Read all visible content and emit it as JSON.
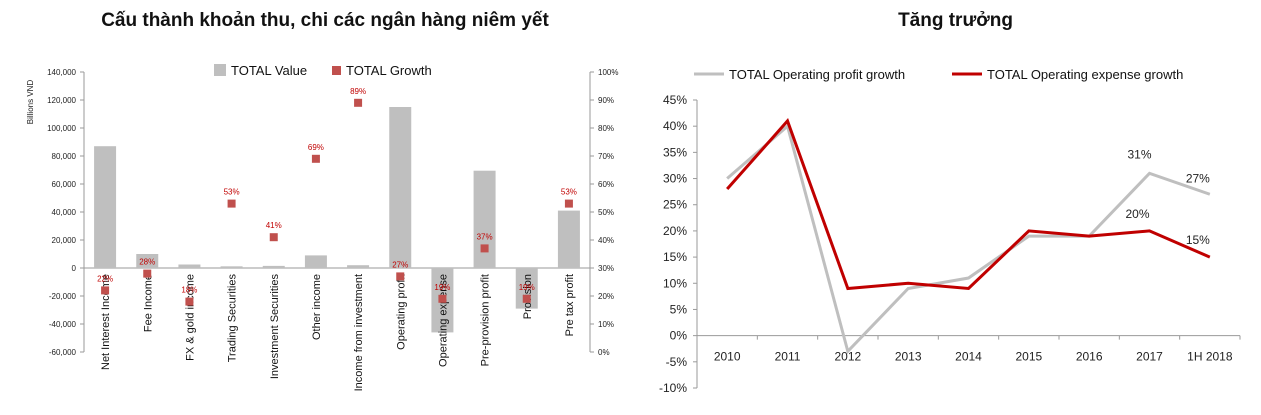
{
  "chart_data": [
    {
      "type": "bar",
      "title": "Cấu thành khoản thu, chi các ngân hàng niêm yết",
      "ylabel": "Billions VND",
      "ylim": [
        -60000,
        140000
      ],
      "y_ticks": [
        "-60,000",
        "-40,000",
        "-20,000",
        "0",
        "20,000",
        "40,000",
        "60,000",
        "80,000",
        "100,000",
        "120,000",
        "140,000"
      ],
      "y2lim": [
        0,
        100
      ],
      "y2_ticks": [
        "0%",
        "10%",
        "20%",
        "30%",
        "40%",
        "50%",
        "60%",
        "70%",
        "80%",
        "90%",
        "100%"
      ],
      "legend_position": "top",
      "colors": {
        "value": "#bfbfbf",
        "growth": "#c0504d",
        "label": "#c00000"
      },
      "categories": [
        "Net Interest Income",
        "Fee Income",
        "FX & gold income",
        "Trading Securities",
        "Investment Securities",
        "Other income",
        "Income from investment",
        "Operating profit",
        "Operating expense",
        "Pre-provision profit",
        "Provision",
        "Pre tax profit"
      ],
      "series": [
        {
          "name": "TOTAL Value",
          "axis": "left",
          "values": [
            87000,
            10000,
            2500,
            1200,
            1500,
            9000,
            2000,
            115000,
            -46000,
            69500,
            -29000,
            41000
          ]
        },
        {
          "name": "TOTAL Growth",
          "axis": "right",
          "values": [
            22,
            28,
            18,
            53,
            41,
            69,
            89,
            27,
            19,
            37,
            19,
            53
          ],
          "labels": [
            "22%",
            "28%",
            "18%",
            "53%",
            "41%",
            "69%",
            "89%",
            "27%",
            "19%",
            "37%",
            "19%",
            "53%"
          ]
        }
      ]
    },
    {
      "type": "line",
      "title": "Tăng trưởng",
      "ylim": [
        -10,
        45
      ],
      "y_ticks": [
        "-10%",
        "-5%",
        "0%",
        "5%",
        "10%",
        "15%",
        "20%",
        "25%",
        "30%",
        "35%",
        "40%",
        "45%"
      ],
      "legend_position": "top",
      "categories": [
        "2010",
        "2011",
        "2012",
        "2013",
        "2014",
        "2015",
        "2016",
        "2017",
        "1H 2018"
      ],
      "series": [
        {
          "name": "TOTAL Operating profit growth",
          "color": "#bfbfbf",
          "values": [
            30,
            40,
            -3,
            9,
            11,
            19,
            19,
            31,
            27
          ]
        },
        {
          "name": "TOTAL Operating expense growth",
          "color": "#c00000",
          "values": [
            28,
            41,
            9,
            10,
            9,
            20,
            19,
            20,
            15
          ]
        }
      ],
      "data_labels": [
        {
          "series": 0,
          "index": 7,
          "text": "31%"
        },
        {
          "series": 0,
          "index": 8,
          "text": "27%"
        },
        {
          "series": 1,
          "index": 7,
          "text": "20%"
        },
        {
          "series": 1,
          "index": 8,
          "text": "15%"
        }
      ]
    }
  ]
}
